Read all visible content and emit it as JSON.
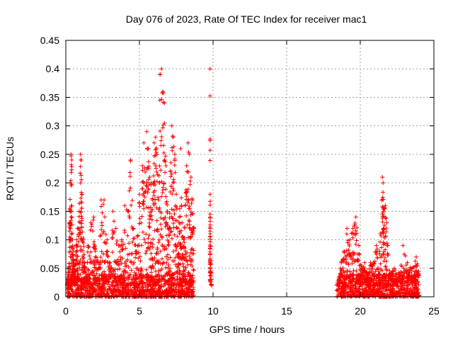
{
  "chart_data": {
    "type": "scatter",
    "title": "Day 076 of 2023, Rate Of TEC Index for receiver mac1",
    "xlabel": "GPS time / hours",
    "ylabel": "ROTI / TECUs",
    "xlim": [
      0,
      25
    ],
    "ylim": [
      0,
      0.45
    ],
    "xticks": [
      0,
      5,
      10,
      15,
      20,
      25
    ],
    "yticks": [
      0,
      0.05,
      0.1,
      0.15,
      0.2,
      0.25,
      0.3,
      0.35,
      0.4,
      0.45
    ],
    "xtick_labels": [
      "0",
      "5",
      "10",
      "15",
      "20",
      "25"
    ],
    "ytick_labels": [
      "0",
      "0.05",
      "0.1",
      "0.15",
      "0.2",
      "0.25",
      "0.3",
      "0.35",
      "0.4",
      "0.45"
    ],
    "grid": true,
    "marker": "+",
    "color": "#ff0000",
    "series": [
      {
        "points": [
          [
            0.1,
            0.02
          ],
          [
            0.15,
            0.05
          ],
          [
            0.2,
            0.03
          ],
          [
            0.25,
            0.13
          ],
          [
            0.3,
            0.2
          ],
          [
            0.35,
            0.25
          ],
          [
            0.4,
            0.24
          ],
          [
            0.45,
            0.1
          ],
          [
            0.5,
            0.08
          ],
          [
            0.55,
            0.06
          ],
          [
            0.6,
            0.04
          ],
          [
            0.7,
            0.09
          ],
          [
            0.8,
            0.12
          ],
          [
            0.9,
            0.15
          ],
          [
            1.0,
            0.25
          ],
          [
            1.05,
            0.24
          ],
          [
            1.1,
            0.18
          ],
          [
            1.2,
            0.1
          ],
          [
            1.3,
            0.05
          ],
          [
            1.4,
            0.03
          ],
          [
            1.5,
            0.09
          ],
          [
            1.7,
            0.13
          ],
          [
            1.9,
            0.14
          ],
          [
            2.0,
            0.08
          ],
          [
            2.2,
            0.06
          ],
          [
            2.4,
            0.17
          ],
          [
            2.6,
            0.17
          ],
          [
            2.8,
            0.1
          ],
          [
            3.0,
            0.06
          ],
          [
            3.2,
            0.15
          ],
          [
            3.4,
            0.12
          ],
          [
            3.6,
            0.09
          ],
          [
            3.8,
            0.1
          ],
          [
            4.0,
            0.16
          ],
          [
            4.2,
            0.15
          ],
          [
            4.4,
            0.24
          ],
          [
            4.6,
            0.12
          ],
          [
            4.8,
            0.08
          ],
          [
            5.0,
            0.18
          ],
          [
            5.2,
            0.23
          ],
          [
            5.3,
            0.27
          ],
          [
            5.5,
            0.29
          ],
          [
            5.6,
            0.26
          ],
          [
            5.7,
            0.21
          ],
          [
            5.8,
            0.2
          ],
          [
            5.9,
            0.17
          ],
          [
            6.0,
            0.27
          ],
          [
            6.1,
            0.28
          ],
          [
            6.2,
            0.25
          ],
          [
            6.3,
            0.17
          ],
          [
            6.4,
            0.39
          ],
          [
            6.5,
            0.4
          ],
          [
            6.6,
            0.36
          ],
          [
            6.7,
            0.34
          ],
          [
            6.8,
            0.23
          ],
          [
            6.9,
            0.15
          ],
          [
            7.0,
            0.12
          ],
          [
            7.1,
            0.22
          ],
          [
            7.2,
            0.3
          ],
          [
            7.3,
            0.28
          ],
          [
            7.4,
            0.25
          ],
          [
            7.5,
            0.18
          ],
          [
            7.6,
            0.12
          ],
          [
            7.7,
            0.14
          ],
          [
            7.8,
            0.26
          ],
          [
            7.9,
            0.13
          ],
          [
            8.0,
            0.1
          ],
          [
            8.1,
            0.16
          ],
          [
            8.2,
            0.23
          ],
          [
            8.3,
            0.27
          ],
          [
            8.4,
            0.25
          ],
          [
            8.5,
            0.21
          ],
          [
            8.6,
            0.17
          ],
          [
            8.7,
            0.12
          ],
          [
            9.8,
            0.4
          ],
          [
            9.8,
            0.18
          ],
          [
            9.8,
            0.14
          ],
          [
            9.8,
            0.12
          ],
          [
            9.9,
            0.02
          ],
          [
            18.5,
            0.02
          ],
          [
            18.7,
            0.06
          ],
          [
            18.9,
            0.08
          ],
          [
            19.1,
            0.12
          ],
          [
            19.3,
            0.1
          ],
          [
            19.5,
            0.12
          ],
          [
            19.7,
            0.14
          ],
          [
            19.9,
            0.09
          ],
          [
            20.1,
            0.05
          ],
          [
            20.3,
            0.06
          ],
          [
            20.5,
            0.04
          ],
          [
            20.7,
            0.06
          ],
          [
            20.9,
            0.06
          ],
          [
            21.1,
            0.09
          ],
          [
            21.3,
            0.08
          ],
          [
            21.5,
            0.21
          ],
          [
            21.55,
            0.2
          ],
          [
            21.6,
            0.15
          ],
          [
            21.7,
            0.16
          ],
          [
            21.8,
            0.13
          ],
          [
            22.0,
            0.04
          ],
          [
            22.3,
            0.05
          ],
          [
            22.6,
            0.04
          ],
          [
            22.9,
            0.09
          ],
          [
            23.2,
            0.06
          ],
          [
            23.5,
            0.05
          ],
          [
            23.8,
            0.07
          ],
          [
            24.0,
            0.04
          ]
        ],
        "background_clusters": [
          {
            "x_range": [
              0.1,
              8.7
            ],
            "y_range": [
              0,
              0.04
            ]
          },
          {
            "x_range": [
              18.4,
              24.0
            ],
            "y_range": [
              0,
              0.04
            ]
          }
        ]
      }
    ]
  }
}
